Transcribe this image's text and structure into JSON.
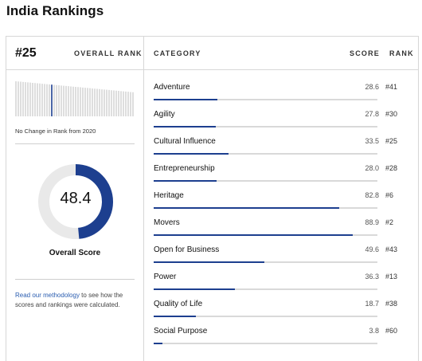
{
  "page": {
    "title": "India Rankings"
  },
  "overall": {
    "rank": "#25",
    "rank_label": "OVERALL RANK",
    "change_text": "No Change in Rank from 2020",
    "score": "48.4",
    "score_fraction": 0.484,
    "score_label": "Overall Score",
    "methodology_link": "Read our methodology",
    "methodology_rest": " to see how the scores and rankings were calculated."
  },
  "columns": {
    "category": "CATEGORY",
    "score": "SCORE",
    "rank": "RANK"
  },
  "categories": [
    {
      "name": "Adventure",
      "score": "28.6",
      "rank": "#41",
      "value": 28.6
    },
    {
      "name": "Agility",
      "score": "27.8",
      "rank": "#30",
      "value": 27.8
    },
    {
      "name": "Cultural Influence",
      "score": "33.5",
      "rank": "#25",
      "value": 33.5
    },
    {
      "name": "Entrepreneurship",
      "score": "28.0",
      "rank": "#28",
      "value": 28.0
    },
    {
      "name": "Heritage",
      "score": "82.8",
      "rank": "#6",
      "value": 82.8
    },
    {
      "name": "Movers",
      "score": "88.9",
      "rank": "#2",
      "value": 88.9
    },
    {
      "name": "Open for Business",
      "score": "49.6",
      "rank": "#43",
      "value": 49.6
    },
    {
      "name": "Power",
      "score": "36.3",
      "rank": "#13",
      "value": 36.3
    },
    {
      "name": "Quality of Life",
      "score": "18.7",
      "rank": "#38",
      "value": 18.7
    },
    {
      "name": "Social Purpose",
      "score": "3.8",
      "rank": "#60",
      "value": 3.8
    }
  ],
  "colors": {
    "accent": "#1d3f8f",
    "track": "#e9e9e9",
    "link": "#2a5db0"
  }
}
